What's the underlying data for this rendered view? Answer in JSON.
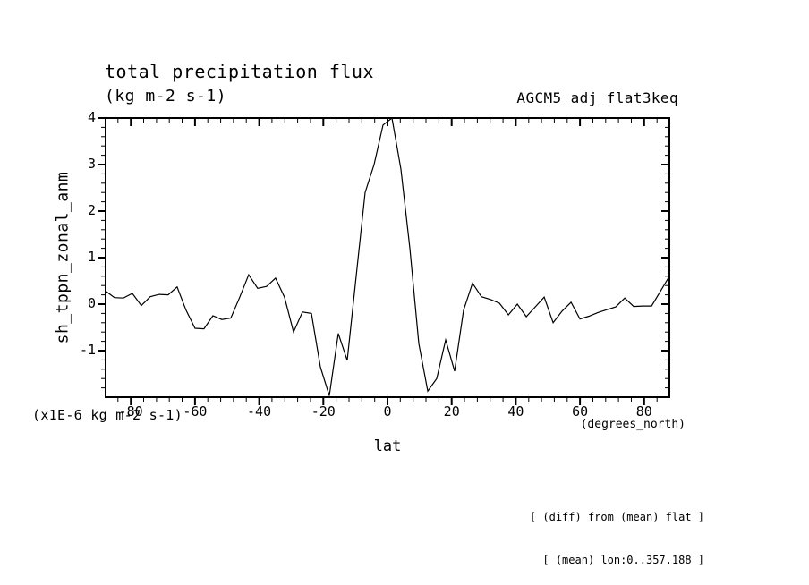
{
  "page": {
    "background": "#ffffff",
    "foreground": "#000000"
  },
  "header": {
    "title": "total precipitation flux",
    "units_line": "(kg m-2 s-1)",
    "run_label": "AGCM5_adj_flat3keq"
  },
  "axes": {
    "y_label": "sh_tppn_zonal_anm",
    "y_units": "(x1E-6 kg m-2 s-1)",
    "x_label": "lat",
    "x_units": "(degrees_north)"
  },
  "footnotes": {
    "line1": "[ (diff) from (mean) flat ]",
    "line2": "[ (mean) lon:0..357.188 ]"
  },
  "chart_data": {
    "type": "line",
    "title": "total precipitation flux",
    "subtitle": "(kg m-2 s-1)",
    "xlabel": "lat",
    "ylabel": "sh_tppn_zonal_anm",
    "x_units": "degrees_north",
    "y_units": "x1E-6 kg m-2 s-1",
    "xlim": [
      -87.86,
      87.86
    ],
    "ylim": [
      -2,
      4
    ],
    "x_ticks": [
      -80,
      -60,
      -40,
      -20,
      0,
      20,
      40,
      60,
      80
    ],
    "x_tick_labels": [
      "-80",
      "-60",
      "-40",
      "-20",
      "0",
      "20",
      "40",
      "60",
      "80"
    ],
    "y_ticks": [
      4,
      3,
      2,
      1,
      0,
      -1
    ],
    "y_tick_labels": [
      "4",
      "3",
      "2",
      "1",
      "0",
      "-1"
    ],
    "x_minor_step": 4,
    "y_minor_step": 0.2,
    "grid": false,
    "line_color": "#000000",
    "frame_color": "#000000",
    "series": [
      {
        "name": "sh_tppn_zonal_anm",
        "x": [
          -87.86,
          -85.1,
          -82.31,
          -79.53,
          -76.74,
          -73.95,
          -71.16,
          -68.37,
          -65.58,
          -62.79,
          -60.0,
          -57.21,
          -54.42,
          -51.63,
          -48.84,
          -46.04,
          -43.25,
          -40.46,
          -37.67,
          -34.88,
          -32.09,
          -29.3,
          -26.51,
          -23.72,
          -20.93,
          -18.14,
          -15.35,
          -12.56,
          -9.77,
          -6.98,
          -4.19,
          -1.4,
          1.4,
          4.19,
          6.98,
          9.77,
          12.56,
          15.35,
          18.14,
          20.93,
          23.72,
          26.51,
          29.3,
          32.09,
          34.88,
          37.67,
          40.46,
          43.25,
          46.04,
          48.84,
          51.63,
          54.42,
          57.21,
          60.0,
          62.79,
          65.58,
          68.37,
          71.16,
          73.95,
          76.74,
          79.53,
          82.31,
          85.1,
          87.86
        ],
        "y": [
          0.28,
          0.14,
          0.13,
          0.23,
          -0.03,
          0.16,
          0.21,
          0.2,
          0.37,
          -0.13,
          -0.52,
          -0.53,
          -0.25,
          -0.33,
          -0.3,
          0.15,
          0.63,
          0.34,
          0.38,
          0.56,
          0.15,
          -0.6,
          -0.17,
          -0.2,
          -1.35,
          -1.97,
          -0.63,
          -1.21,
          0.6,
          2.4,
          3.0,
          3.85,
          4.0,
          2.9,
          1.2,
          -0.85,
          -1.87,
          -1.6,
          -0.77,
          -1.44,
          -0.13,
          0.45,
          0.16,
          0.1,
          0.02,
          -0.23,
          0.0,
          -0.27,
          -0.06,
          0.15,
          -0.4,
          -0.15,
          0.04,
          -0.32,
          -0.26,
          -0.18,
          -0.12,
          -0.06,
          0.13,
          -0.05,
          -0.04,
          -0.04,
          0.28,
          0.6
        ]
      }
    ]
  }
}
